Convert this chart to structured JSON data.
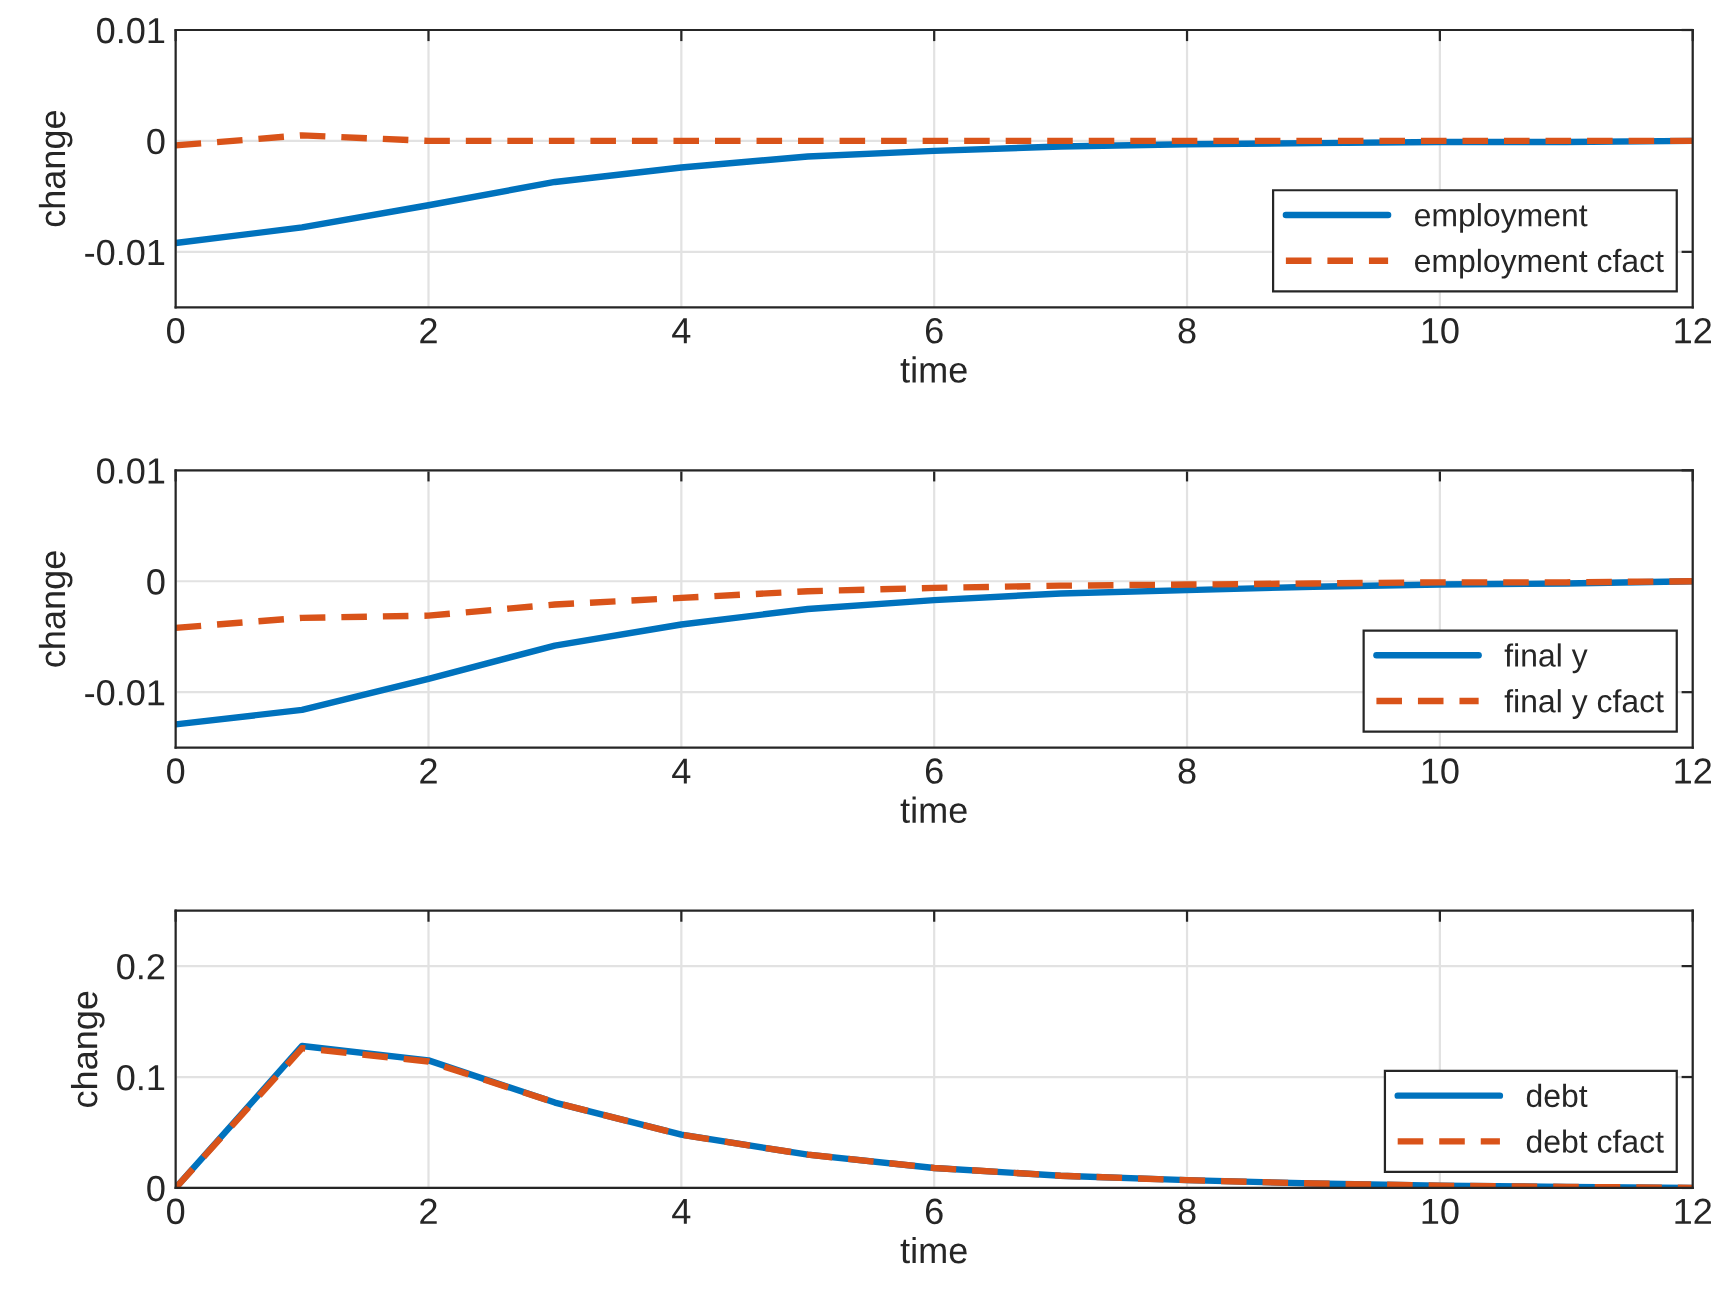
{
  "chart_data": [
    {
      "type": "line",
      "xlabel": "time",
      "ylabel": "change",
      "x": [
        0,
        1,
        2,
        3,
        4,
        5,
        6,
        7,
        8,
        9,
        10,
        11,
        12
      ],
      "xlim": [
        0,
        12
      ],
      "xticks": [
        0,
        2,
        4,
        6,
        8,
        10,
        12
      ],
      "ylim": [
        -0.015,
        0.01
      ],
      "yticks": [
        -0.01,
        0,
        0.01
      ],
      "grid": true,
      "legend": "bottom right",
      "series": [
        {
          "name": "employment",
          "color": "#0072bd",
          "line_style": "solid",
          "values": [
            -0.0092,
            -0.0078,
            -0.0058,
            -0.0037,
            -0.0024,
            -0.0014,
            -0.0009,
            -0.0005,
            -0.0003,
            -0.0002,
            -0.0001,
            -0.0001,
            0
          ]
        },
        {
          "name": "employment cfact",
          "color": "#d95319",
          "line_style": "dashed",
          "values": [
            -0.0004,
            0.0005,
            0,
            0,
            0,
            0,
            0,
            0,
            0,
            0,
            0,
            0,
            0
          ]
        }
      ]
    },
    {
      "type": "line",
      "xlabel": "time",
      "ylabel": "change",
      "x": [
        0,
        1,
        2,
        3,
        4,
        5,
        6,
        7,
        8,
        9,
        10,
        11,
        12
      ],
      "xlim": [
        0,
        12
      ],
      "xticks": [
        0,
        2,
        4,
        6,
        8,
        10,
        12
      ],
      "ylim": [
        -0.015,
        0.01
      ],
      "yticks": [
        -0.01,
        0,
        0.01
      ],
      "grid": true,
      "legend": "bottom right",
      "series": [
        {
          "name": "final y",
          "color": "#0072bd",
          "line_style": "solid",
          "values": [
            -0.0129,
            -0.0116,
            -0.0088,
            -0.0058,
            -0.0039,
            -0.0025,
            -0.0017,
            -0.0011,
            -0.0008,
            -0.0005,
            -0.0003,
            -0.0002,
            0
          ]
        },
        {
          "name": "final y cfact",
          "color": "#d95319",
          "line_style": "dashed",
          "values": [
            -0.0042,
            -0.0033,
            -0.0031,
            -0.0021,
            -0.0015,
            -0.0009,
            -0.0006,
            -0.0004,
            -0.0003,
            -0.0002,
            -0.0001,
            -0.0001,
            0
          ]
        }
      ]
    },
    {
      "type": "line",
      "xlabel": "time",
      "ylabel": "change",
      "x": [
        0,
        1,
        2,
        3,
        4,
        5,
        6,
        7,
        8,
        9,
        10,
        11,
        12
      ],
      "xlim": [
        0,
        12
      ],
      "xticks": [
        0,
        2,
        4,
        6,
        8,
        10,
        12
      ],
      "ylim": [
        0,
        0.25
      ],
      "yticks": [
        0,
        0.1,
        0.2
      ],
      "grid": true,
      "legend": "bottom right",
      "series": [
        {
          "name": "debt",
          "color": "#0072bd",
          "line_style": "solid",
          "values": [
            0,
            0.128,
            0.115,
            0.077,
            0.048,
            0.03,
            0.018,
            0.011,
            0.007,
            0.004,
            0.002,
            0.001,
            0
          ]
        },
        {
          "name": "debt cfact",
          "color": "#d95319",
          "line_style": "dashed",
          "values": [
            0,
            0.126,
            0.114,
            0.077,
            0.048,
            0.03,
            0.018,
            0.011,
            0.007,
            0.004,
            0.002,
            0.001,
            0
          ]
        }
      ]
    }
  ]
}
